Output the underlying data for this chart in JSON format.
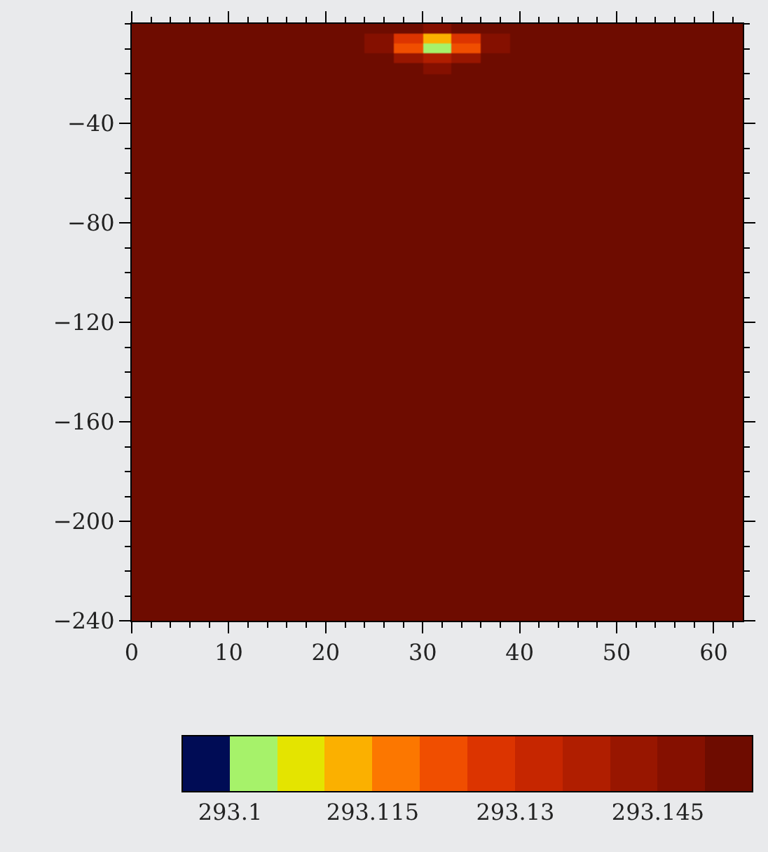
{
  "chart_data": {
    "type": "heatmap",
    "x": [
      1.5,
      4.5,
      7.5,
      10.5,
      13.5,
      16.5,
      19.5,
      22.5,
      25.5,
      28.5,
      31.5,
      34.5,
      37.5,
      40.5,
      43.5,
      46.5,
      49.5,
      52.5,
      55.5,
      58.5,
      61.5
    ],
    "y": [
      -2,
      -6,
      -10,
      -14,
      -18,
      -22,
      -30,
      -50,
      -70,
      -90,
      -110,
      -130,
      -150,
      -170,
      -190,
      -210,
      -230
    ],
    "cells": [
      [
        293.152,
        293.152,
        293.152,
        293.152,
        293.152,
        293.152,
        293.152,
        293.152,
        293.152,
        293.152,
        293.148,
        293.152,
        293.152,
        293.152,
        293.152,
        293.152,
        293.152,
        293.152,
        293.152,
        293.152,
        293.152
      ],
      [
        293.152,
        293.152,
        293.152,
        293.152,
        293.152,
        293.152,
        293.152,
        293.152,
        293.149,
        293.125,
        293.112,
        293.125,
        293.149,
        293.152,
        293.152,
        293.152,
        293.152,
        293.152,
        293.152,
        293.152,
        293.152
      ],
      [
        293.152,
        293.152,
        293.152,
        293.152,
        293.152,
        293.152,
        293.152,
        293.152,
        293.148,
        293.12,
        293.102,
        293.12,
        293.148,
        293.152,
        293.152,
        293.152,
        293.152,
        293.152,
        293.152,
        293.152,
        293.152
      ],
      [
        293.152,
        293.152,
        293.152,
        293.152,
        293.152,
        293.152,
        293.152,
        293.152,
        293.152,
        293.142,
        293.135,
        293.142,
        293.152,
        293.152,
        293.152,
        293.152,
        293.152,
        293.152,
        293.152,
        293.152,
        293.152
      ],
      [
        293.152,
        293.152,
        293.152,
        293.152,
        293.152,
        293.152,
        293.152,
        293.152,
        293.152,
        293.152,
        293.149,
        293.152,
        293.152,
        293.152,
        293.152,
        293.152,
        293.152,
        293.152,
        293.152,
        293.152,
        293.152
      ],
      [
        293.152,
        293.152,
        293.152,
        293.152,
        293.152,
        293.152,
        293.152,
        293.152,
        293.152,
        293.152,
        293.152,
        293.152,
        293.152,
        293.152,
        293.152,
        293.152,
        293.152,
        293.152,
        293.152,
        293.152,
        293.152
      ],
      [
        293.152,
        293.152,
        293.152,
        293.152,
        293.152,
        293.152,
        293.152,
        293.152,
        293.152,
        293.152,
        293.152,
        293.152,
        293.152,
        293.152,
        293.152,
        293.152,
        293.152,
        293.152,
        293.152,
        293.152,
        293.152
      ],
      [
        293.152,
        293.152,
        293.152,
        293.152,
        293.152,
        293.152,
        293.152,
        293.152,
        293.152,
        293.152,
        293.152,
        293.152,
        293.152,
        293.152,
        293.152,
        293.152,
        293.152,
        293.152,
        293.152,
        293.152,
        293.152
      ],
      [
        293.152,
        293.152,
        293.152,
        293.152,
        293.152,
        293.152,
        293.152,
        293.152,
        293.152,
        293.152,
        293.152,
        293.152,
        293.152,
        293.152,
        293.152,
        293.152,
        293.152,
        293.152,
        293.152,
        293.152,
        293.152
      ],
      [
        293.152,
        293.152,
        293.152,
        293.152,
        293.152,
        293.152,
        293.152,
        293.152,
        293.152,
        293.152,
        293.152,
        293.152,
        293.152,
        293.152,
        293.152,
        293.152,
        293.152,
        293.152,
        293.152,
        293.152,
        293.152
      ],
      [
        293.152,
        293.152,
        293.152,
        293.152,
        293.152,
        293.152,
        293.152,
        293.152,
        293.152,
        293.152,
        293.152,
        293.152,
        293.152,
        293.152,
        293.152,
        293.152,
        293.152,
        293.152,
        293.152,
        293.152,
        293.152
      ],
      [
        293.152,
        293.152,
        293.152,
        293.152,
        293.152,
        293.152,
        293.152,
        293.152,
        293.152,
        293.152,
        293.152,
        293.152,
        293.152,
        293.152,
        293.152,
        293.152,
        293.152,
        293.152,
        293.152,
        293.152,
        293.152
      ],
      [
        293.152,
        293.152,
        293.152,
        293.152,
        293.152,
        293.152,
        293.152,
        293.152,
        293.152,
        293.152,
        293.152,
        293.152,
        293.152,
        293.152,
        293.152,
        293.152,
        293.152,
        293.152,
        293.152,
        293.152,
        293.152
      ],
      [
        293.152,
        293.152,
        293.152,
        293.152,
        293.152,
        293.152,
        293.152,
        293.152,
        293.152,
        293.152,
        293.152,
        293.152,
        293.152,
        293.152,
        293.152,
        293.152,
        293.152,
        293.152,
        293.152,
        293.152,
        293.152
      ],
      [
        293.152,
        293.152,
        293.152,
        293.152,
        293.152,
        293.152,
        293.152,
        293.152,
        293.152,
        293.152,
        293.152,
        293.152,
        293.152,
        293.152,
        293.152,
        293.152,
        293.152,
        293.152,
        293.152,
        293.152,
        293.152
      ],
      [
        293.152,
        293.152,
        293.152,
        293.152,
        293.152,
        293.152,
        293.152,
        293.152,
        293.152,
        293.152,
        293.152,
        293.152,
        293.152,
        293.152,
        293.152,
        293.152,
        293.152,
        293.152,
        293.152,
        293.152,
        293.152
      ],
      [
        293.152,
        293.152,
        293.152,
        293.152,
        293.152,
        293.152,
        293.152,
        293.152,
        293.152,
        293.152,
        293.152,
        293.152,
        293.152,
        293.152,
        293.152,
        293.152,
        293.152,
        293.152,
        293.152,
        293.152,
        293.152
      ]
    ],
    "colors": [
      "#000c55",
      "#a6f26a",
      "#e4e400",
      "#fbb000",
      "#fc7700",
      "#f04e00",
      "#dc3400",
      "#c62600",
      "#b01e00",
      "#981600",
      "#851000",
      "#6e0c00"
    ],
    "clim": [
      293.095,
      293.155
    ],
    "cticks": [
      293.1,
      293.115,
      293.13,
      293.145
    ],
    "xlim": [
      0,
      63
    ],
    "xticks": [
      0,
      10,
      20,
      30,
      40,
      50,
      60
    ],
    "ylim": [
      -240,
      0
    ],
    "yticks": [
      -40,
      -80,
      -120,
      -160,
      -200,
      -240
    ]
  }
}
